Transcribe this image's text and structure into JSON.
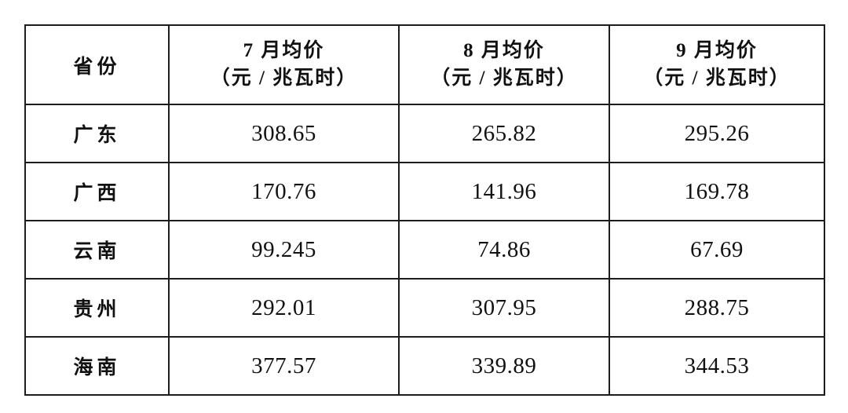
{
  "header": {
    "province_label": "省份",
    "months": [
      {
        "title": "7 月均价",
        "unit": "（元 / 兆瓦时）"
      },
      {
        "title": "8 月均价",
        "unit": "（元 / 兆瓦时）"
      },
      {
        "title": "9 月均价",
        "unit": "（元 / 兆瓦时）"
      }
    ]
  },
  "rows": [
    {
      "province": "广东",
      "values": [
        "308.65",
        "265.82",
        "295.26"
      ]
    },
    {
      "province": "广西",
      "values": [
        "170.76",
        "141.96",
        "169.78"
      ]
    },
    {
      "province": "云南",
      "values": [
        "99.245",
        "74.86",
        "67.69"
      ]
    },
    {
      "province": "贵州",
      "values": [
        "292.01",
        "307.95",
        "288.75"
      ]
    },
    {
      "province": "海南",
      "values": [
        "377.57",
        "339.89",
        "344.53"
      ]
    }
  ],
  "style": {
    "border_color": "#1c1c1c",
    "background_color": "#ffffff",
    "text_color": "#111111"
  },
  "chart_data": {
    "type": "table",
    "title": "",
    "categories": [
      "广东",
      "广西",
      "云南",
      "贵州",
      "海南"
    ],
    "series": [
      {
        "name": "7月均价（元/兆瓦时）",
        "values": [
          308.65,
          170.76,
          99.245,
          292.01,
          377.57
        ]
      },
      {
        "name": "8月均价（元/兆瓦时）",
        "values": [
          265.82,
          141.96,
          74.86,
          307.95,
          339.89
        ]
      },
      {
        "name": "9月均价（元/兆瓦时）",
        "values": [
          295.26,
          169.78,
          67.69,
          288.75,
          344.53
        ]
      }
    ]
  }
}
